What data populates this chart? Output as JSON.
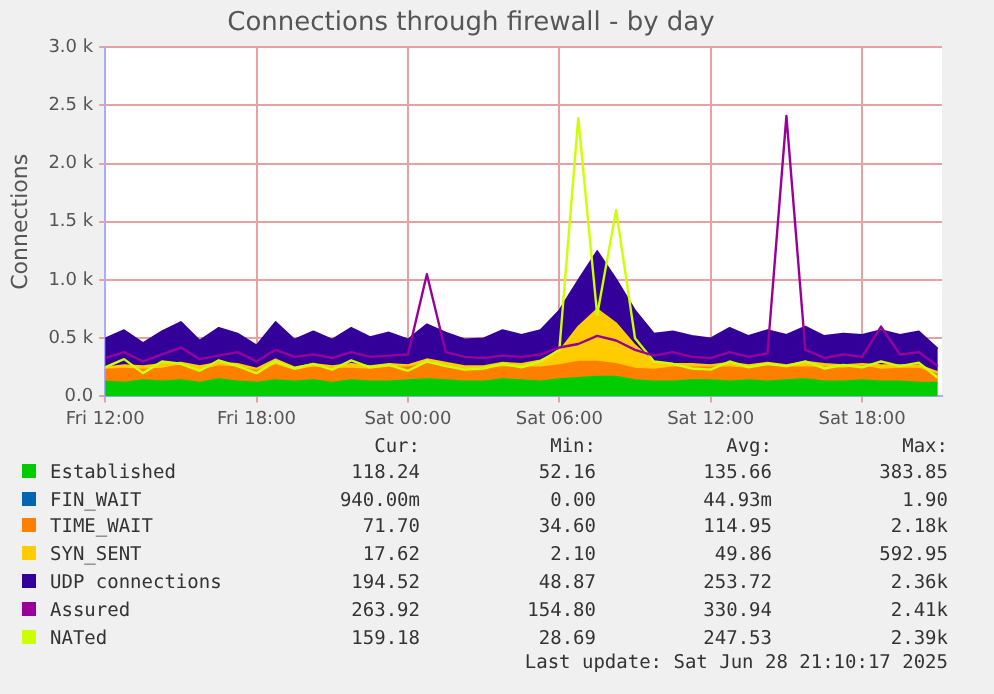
{
  "chart_data": {
    "type": "area",
    "title": "Connections through firewall - by day",
    "ylabel": "Connections",
    "stacked": true,
    "grid": true,
    "legend": "bottom",
    "x": [
      "2025-06-27T12:00",
      "2025-06-27T12:45",
      "2025-06-27T13:30",
      "2025-06-27T14:15",
      "2025-06-27T15:00",
      "2025-06-27T15:45",
      "2025-06-27T16:30",
      "2025-06-27T17:15",
      "2025-06-27T18:00",
      "2025-06-27T18:45",
      "2025-06-27T19:30",
      "2025-06-27T20:15",
      "2025-06-27T21:00",
      "2025-06-27T21:45",
      "2025-06-27T22:30",
      "2025-06-27T23:15",
      "2025-06-28T00:00",
      "2025-06-28T00:45",
      "2025-06-28T01:30",
      "2025-06-28T02:15",
      "2025-06-28T03:00",
      "2025-06-28T03:45",
      "2025-06-28T04:30",
      "2025-06-28T05:15",
      "2025-06-28T06:00",
      "2025-06-28T06:45",
      "2025-06-28T07:30",
      "2025-06-28T08:15",
      "2025-06-28T09:00",
      "2025-06-28T09:45",
      "2025-06-28T10:30",
      "2025-06-28T11:15",
      "2025-06-28T12:00",
      "2025-06-28T12:45",
      "2025-06-28T13:30",
      "2025-06-28T14:15",
      "2025-06-28T15:00",
      "2025-06-28T15:45",
      "2025-06-28T16:30",
      "2025-06-28T17:15",
      "2025-06-28T18:00",
      "2025-06-28T18:45",
      "2025-06-28T19:30",
      "2025-06-28T20:15",
      "2025-06-28T21:00"
    ],
    "xlim": [
      "2025-06-27T12:00",
      "2025-06-28T21:10"
    ],
    "xticks": [
      {
        "value": "2025-06-27T12:00",
        "label": "Fri 12:00"
      },
      {
        "value": "2025-06-27T18:00",
        "label": "Fri 18:00"
      },
      {
        "value": "2025-06-28T00:00",
        "label": "Sat 00:00"
      },
      {
        "value": "2025-06-28T06:00",
        "label": "Sat 06:00"
      },
      {
        "value": "2025-06-28T12:00",
        "label": "Sat 12:00"
      },
      {
        "value": "2025-06-28T18:00",
        "label": "Sat 18:00"
      }
    ],
    "ylim": [
      0,
      3000
    ],
    "yticks": [
      {
        "value": 0,
        "label": "0.0"
      },
      {
        "value": 500,
        "label": "0.5 k"
      },
      {
        "value": 1000,
        "label": "1.0 k"
      },
      {
        "value": 1500,
        "label": "1.5 k"
      },
      {
        "value": 2000,
        "label": "2.0 k"
      },
      {
        "value": 2500,
        "label": "2.5 k"
      },
      {
        "value": 3000,
        "label": "3.0 k"
      }
    ],
    "series": [
      {
        "name": "Established",
        "color": "#00cc00",
        "values": [
          130,
          120,
          140,
          130,
          140,
          120,
          150,
          130,
          120,
          140,
          130,
          140,
          120,
          140,
          130,
          130,
          140,
          150,
          140,
          130,
          130,
          150,
          140,
          130,
          150,
          160,
          170,
          170,
          140,
          130,
          130,
          140,
          140,
          130,
          140,
          130,
          140,
          150,
          130,
          130,
          140,
          130,
          130,
          120,
          120
        ]
      },
      {
        "name": "FIN_WAIT",
        "color": "#0066b3",
        "values": [
          null,
          null,
          null,
          null,
          null,
          null,
          null,
          null,
          null,
          null,
          null,
          null,
          null,
          null,
          null,
          null,
          null,
          null,
          null,
          null,
          null,
          null,
          null,
          null,
          null,
          null,
          null,
          null,
          null,
          null,
          null,
          null,
          null,
          null,
          null,
          null,
          null,
          null,
          null,
          null,
          null,
          null,
          null,
          null,
          null
        ]
      },
      {
        "name": "TIME_WAIT",
        "color": "#ff8000",
        "values": [
          100,
          120,
          90,
          110,
          130,
          100,
          110,
          120,
          100,
          130,
          90,
          110,
          120,
          100,
          100,
          120,
          110,
          130,
          120,
          100,
          110,
          100,
          110,
          120,
          120,
          140,
          130,
          110,
          100,
          100,
          120,
          110,
          110,
          120,
          100,
          130,
          110,
          100,
          120,
          110,
          120,
          100,
          110,
          120,
          70
        ]
      },
      {
        "name": "SYN_SENT",
        "color": "#ffcc00",
        "values": [
          20,
          30,
          30,
          40,
          20,
          40,
          30,
          30,
          20,
          50,
          30,
          30,
          20,
          40,
          30,
          30,
          20,
          40,
          30,
          30,
          20,
          40,
          30,
          60,
          120,
          300,
          450,
          350,
          200,
          60,
          30,
          30,
          20,
          40,
          30,
          30,
          20,
          50,
          30,
          30,
          20,
          40,
          30,
          30,
          20
        ]
      },
      {
        "name": "UDP connections",
        "color": "#330099",
        "values": [
          250,
          300,
          200,
          280,
          350,
          220,
          300,
          260,
          200,
          320,
          240,
          280,
          230,
          310,
          250,
          270,
          220,
          300,
          260,
          230,
          240,
          280,
          250,
          260,
          350,
          400,
          500,
          380,
          300,
          250,
          280,
          240,
          230,
          300,
          250,
          280,
          260,
          300,
          240,
          270,
          250,
          300,
          260,
          290,
          200
        ]
      },
      {
        "name": "Assured",
        "type": "line",
        "color": "#990099",
        "values": [
          330,
          380,
          300,
          360,
          420,
          320,
          350,
          380,
          300,
          400,
          340,
          360,
          330,
          380,
          340,
          350,
          360,
          1050,
          380,
          340,
          330,
          350,
          340,
          360,
          420,
          450,
          520,
          480,
          400,
          350,
          380,
          340,
          330,
          380,
          340,
          370,
          2410,
          400,
          330,
          360,
          340,
          600,
          360,
          380,
          260
        ]
      },
      {
        "name": "NATed",
        "type": "line",
        "color": "#ccff00",
        "values": [
          250,
          320,
          200,
          300,
          280,
          220,
          310,
          260,
          200,
          300,
          240,
          280,
          230,
          310,
          250,
          270,
          220,
          300,
          260,
          230,
          240,
          280,
          250,
          300,
          400,
          2390,
          700,
          1600,
          500,
          300,
          280,
          240,
          230,
          300,
          250,
          280,
          260,
          300,
          240,
          270,
          250,
          300,
          260,
          290,
          160
        ]
      }
    ],
    "annotations": [
      "Cur:",
      "Min:",
      "Avg:",
      "Max:",
      "118.24",
      "52.16",
      "135.66",
      "383.85",
      "940.00m",
      "0.00",
      "44.93m",
      "1.90",
      "71.70",
      "34.60",
      "114.95",
      "2.18k",
      "17.62",
      "2.10",
      "49.86",
      "592.95",
      "194.52",
      "48.87",
      "253.72",
      "2.36k",
      "263.92",
      "154.80",
      "330.94",
      "2.41k",
      "159.18",
      "28.69",
      "247.53",
      "2.39k",
      "Last update: Sat Jun 28 21:10:17 2025"
    ]
  }
}
